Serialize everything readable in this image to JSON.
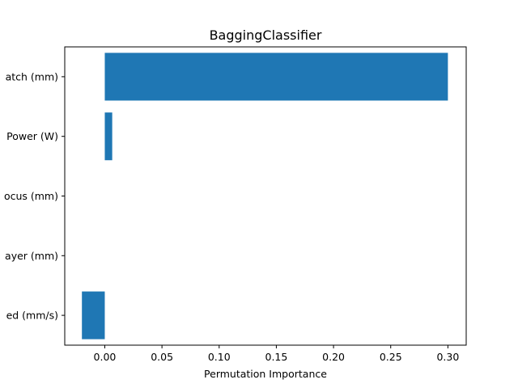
{
  "chart_data": {
    "type": "bar",
    "orientation": "horizontal",
    "title": "BaggingClassifier",
    "xlabel": "Permutation Importance",
    "ylabel": "",
    "categories": [
      "atch (mm)",
      "Power (W)",
      "ocus (mm)",
      "ayer (mm)",
      "ed (mm/s)"
    ],
    "values": [
      0.3,
      0.0065,
      0.0,
      0.0,
      -0.02
    ],
    "xlim": [
      -0.035,
      0.316
    ],
    "xticks": [
      0.0,
      0.05,
      0.1,
      0.15,
      0.2,
      0.25,
      0.3
    ],
    "xtick_labels": [
      "0.00",
      "0.05",
      "0.10",
      "0.15",
      "0.20",
      "0.25",
      "0.30"
    ],
    "grid": false,
    "bar_color": "#1f77b4"
  }
}
